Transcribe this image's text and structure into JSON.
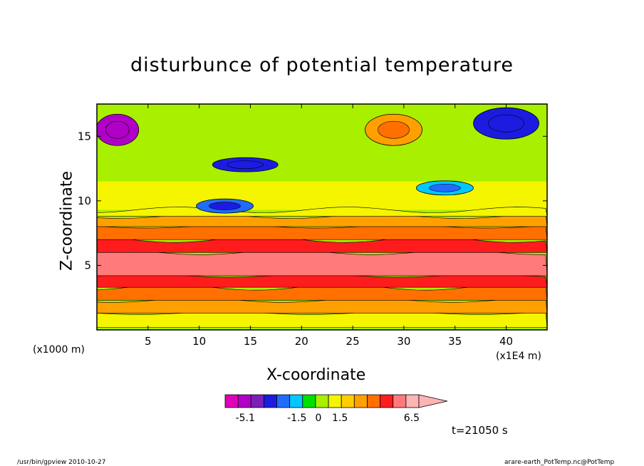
{
  "title": "disturbunce of potential temperature",
  "chart_data": {
    "type": "heatmap",
    "title": "disturbunce of potential temperature",
    "xlabel": "X-coordinate",
    "ylabel": "Z-coordinate",
    "x_unit": "(x1E4 m)",
    "y_unit": "(x1000 m)",
    "xlim": [
      0,
      44
    ],
    "ylim": [
      0,
      17.5
    ],
    "x_ticks": [
      "5",
      "10",
      "15",
      "20",
      "25",
      "30",
      "35",
      "40"
    ],
    "x_tick_values": [
      5,
      10,
      15,
      20,
      25,
      30,
      35,
      40
    ],
    "y_ticks": [
      "5",
      "10",
      "15"
    ],
    "y_tick_values": [
      5,
      10,
      15
    ],
    "layers": [
      {
        "z": [
          0.2,
          1.3
        ],
        "value": 1.5
      },
      {
        "z": [
          1.3,
          2.3
        ],
        "value": 2.5
      },
      {
        "z": [
          2.3,
          3.3
        ],
        "value": 3.5
      },
      {
        "z": [
          3.3,
          4.2
        ],
        "value": 4.5
      },
      {
        "z": [
          4.2,
          6.0
        ],
        "value": 5.5
      },
      {
        "z": [
          6.0,
          7.0
        ],
        "value": 4.5
      },
      {
        "z": [
          7.0,
          8.0
        ],
        "value": 3.5
      },
      {
        "z": [
          8.0,
          8.8
        ],
        "value": 2.5
      },
      {
        "z": [
          8.8,
          9.3
        ],
        "value": 1.5
      }
    ],
    "features": [
      {
        "x": 2,
        "z": 15.5,
        "value": -5.1
      },
      {
        "x": 29,
        "z": 15.5,
        "value": 3.0
      },
      {
        "x": 14.5,
        "z": 12.8,
        "value": -3.5
      },
      {
        "x": 12.5,
        "z": 9.6,
        "value": -2.5
      },
      {
        "x": 34,
        "z": 11.0,
        "value": -2.0
      },
      {
        "x": 40,
        "z": 16.0,
        "value": -3.5
      }
    ],
    "colorbar": {
      "levels": [
        -5.1,
        -1.5,
        0,
        1.5,
        6.5
      ],
      "tick_labels": [
        "-5.1",
        "-1.5",
        "0",
        "1.5",
        "6.5"
      ],
      "colors": [
        "#e000b8",
        "#b000c8",
        "#7a1fb8",
        "#1c1ce0",
        "#1f6cff",
        "#00c8ff",
        "#00e000",
        "#a8f000",
        "#f5f500",
        "#ffce00",
        "#ffa000",
        "#ff7000",
        "#ff1c1c",
        "#ff7a7a",
        "#ffb4b4"
      ]
    },
    "annotation": "t=21050 s"
  },
  "footer": {
    "left": "/usr/bin/gpview   2010-10-27",
    "right": "arare-earth_PotTemp.nc@PotTemp"
  }
}
